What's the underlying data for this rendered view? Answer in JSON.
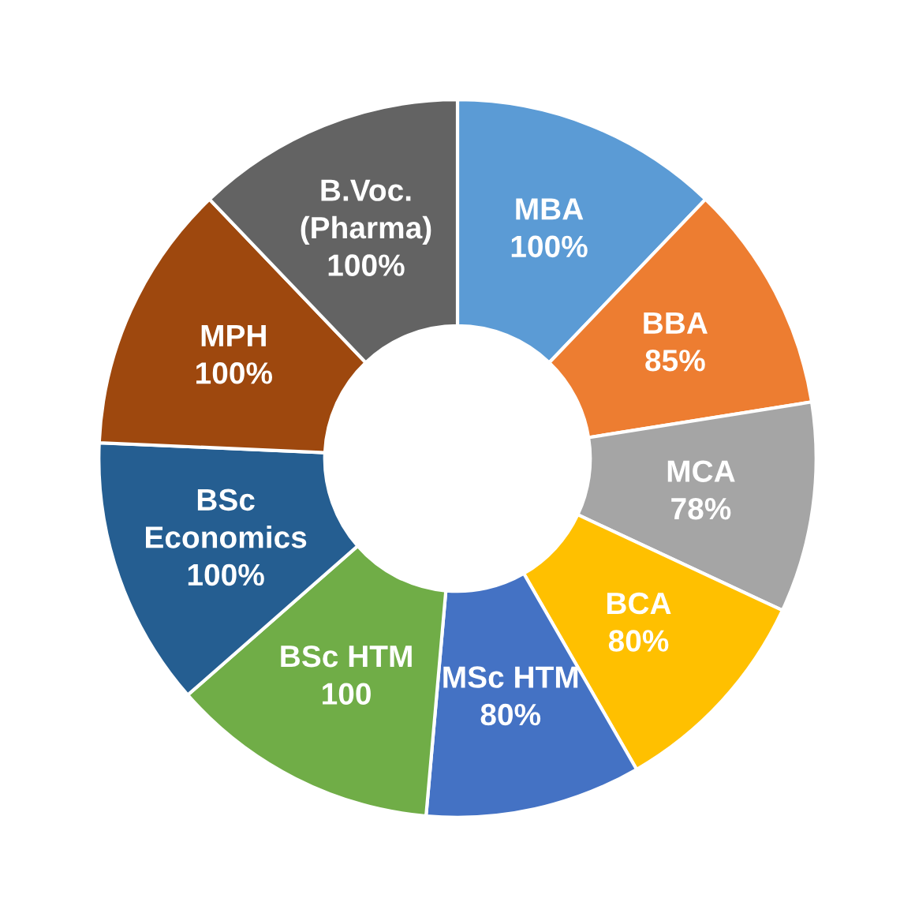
{
  "chart_data": {
    "type": "donut",
    "categories": [
      "MBA",
      "BBA",
      "MCA",
      "BCA",
      "MSc HTM",
      "BSc HTM",
      "BSc\nEconomics",
      "MPH",
      "B.Voc.\n(Pharma)"
    ],
    "values": [
      100,
      85,
      78,
      80,
      80,
      100,
      100,
      100,
      100
    ],
    "value_labels": [
      "100%",
      "85%",
      "78%",
      "80%",
      "80%",
      "100",
      "100%",
      "100%",
      "100%"
    ],
    "colors": [
      "#5b9bd5",
      "#ed7d31",
      "#a5a5a5",
      "#ffc000",
      "#4472c4",
      "#70ad47",
      "#255e91",
      "#9e480e",
      "#636363"
    ],
    "legend": false
  }
}
